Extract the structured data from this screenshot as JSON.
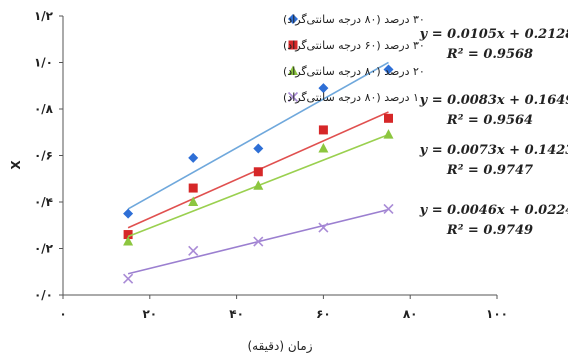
{
  "chart_data": {
    "type": "scatter",
    "xlabel": "زمان (دقیقه)",
    "ylabel": "X",
    "xlim": [
      0,
      100
    ],
    "ylim": [
      0,
      1.2
    ],
    "x_ticks": [
      0,
      20,
      40,
      60,
      80,
      100
    ],
    "x_tick_labels": [
      "۰",
      "۲۰",
      "۴۰",
      "۶۰",
      "۸۰",
      "۱۰۰"
    ],
    "y_ticks": [
      0,
      0.2,
      0.4,
      0.6,
      0.8,
      1.0,
      1.2
    ],
    "y_tick_labels": [
      "۰/۰",
      "۰/۲",
      "۰/۴",
      "۰/۶",
      "۰/۸",
      "۱/۰",
      "۱/۲"
    ],
    "grid": false,
    "legend_position": "top-left",
    "series": [
      {
        "name": "۳۰ درصد (۸۰ درجه سانتی‌گراد)",
        "marker": "diamond",
        "color": "#2e6fd6",
        "line_color": "#6fa8dc",
        "x": [
          15,
          30,
          45,
          60,
          75
        ],
        "y": [
          0.35,
          0.59,
          0.63,
          0.89,
          0.97
        ],
        "equation": "y = 0.0105x + 0.2128",
        "r2": "R² = 0.9568",
        "slope": 0.0105,
        "intercept": 0.2128
      },
      {
        "name": "۳۰ درصد (۶۰ درجه سانتی‌گراد)",
        "marker": "square",
        "color": "#d62728",
        "line_color": "#e0504f",
        "x": [
          15,
          30,
          45,
          60,
          75
        ],
        "y": [
          0.26,
          0.46,
          0.53,
          0.71,
          0.76
        ],
        "equation": "y = 0.0083x + 0.1649",
        "r2": "R² = 0.9564",
        "slope": 0.0083,
        "intercept": 0.1649
      },
      {
        "name": "۲۰ درصد (۸۰ درجه سانتی‌گراد)",
        "marker": "triangle",
        "color": "#8cc63f",
        "line_color": "#9ad04f",
        "x": [
          15,
          30,
          45,
          60,
          75
        ],
        "y": [
          0.23,
          0.4,
          0.47,
          0.63,
          0.69
        ],
        "equation": "y = 0.0073x + 0.1423",
        "r2": "R² = 0.9747",
        "slope": 0.0073,
        "intercept": 0.1423
      },
      {
        "name": "۱۰ درصد (۸۰ درجه سانتی‌گراد)",
        "marker": "x",
        "color": "#a98bd6",
        "line_color": "#9b7fd0",
        "x": [
          15,
          30,
          45,
          60,
          75
        ],
        "y": [
          0.07,
          0.19,
          0.23,
          0.29,
          0.37
        ],
        "equation": "y = 0.0046x + 0.0224",
        "r2": "R² = 0.9749",
        "slope": 0.0046,
        "intercept": 0.0224
      }
    ]
  }
}
